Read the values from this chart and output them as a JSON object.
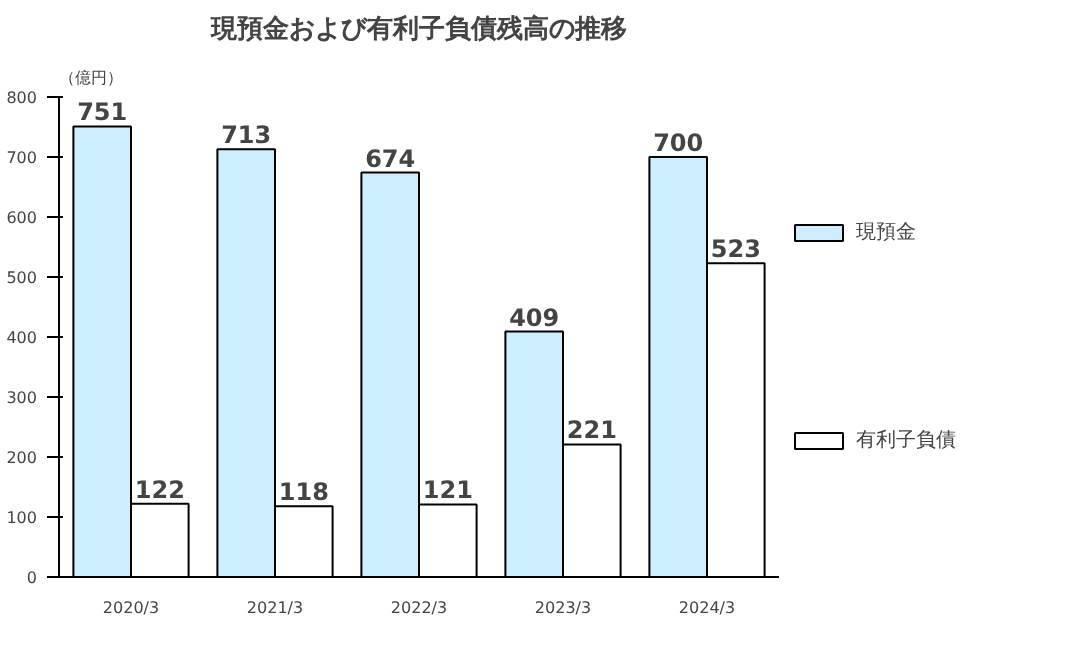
{
  "chart_data": {
    "type": "bar",
    "title": "現預金および有利子負債残高の推移",
    "ylabel": "（億円）",
    "categories": [
      "2020/3",
      "2021/3",
      "2022/3",
      "2023/3",
      "2024/3"
    ],
    "series": [
      {
        "name": "現預金",
        "color": "#cceeff",
        "values": [
          751,
          713,
          674,
          409,
          700
        ]
      },
      {
        "name": "有利子負債",
        "color": "#ffffff",
        "values": [
          122,
          118,
          121,
          221,
          523
        ]
      }
    ],
    "ylim": [
      0,
      800
    ],
    "yticks": [
      0,
      100,
      200,
      300,
      400,
      500,
      600,
      700,
      800
    ],
    "data_labels": true,
    "grid": false,
    "legend": "right"
  }
}
